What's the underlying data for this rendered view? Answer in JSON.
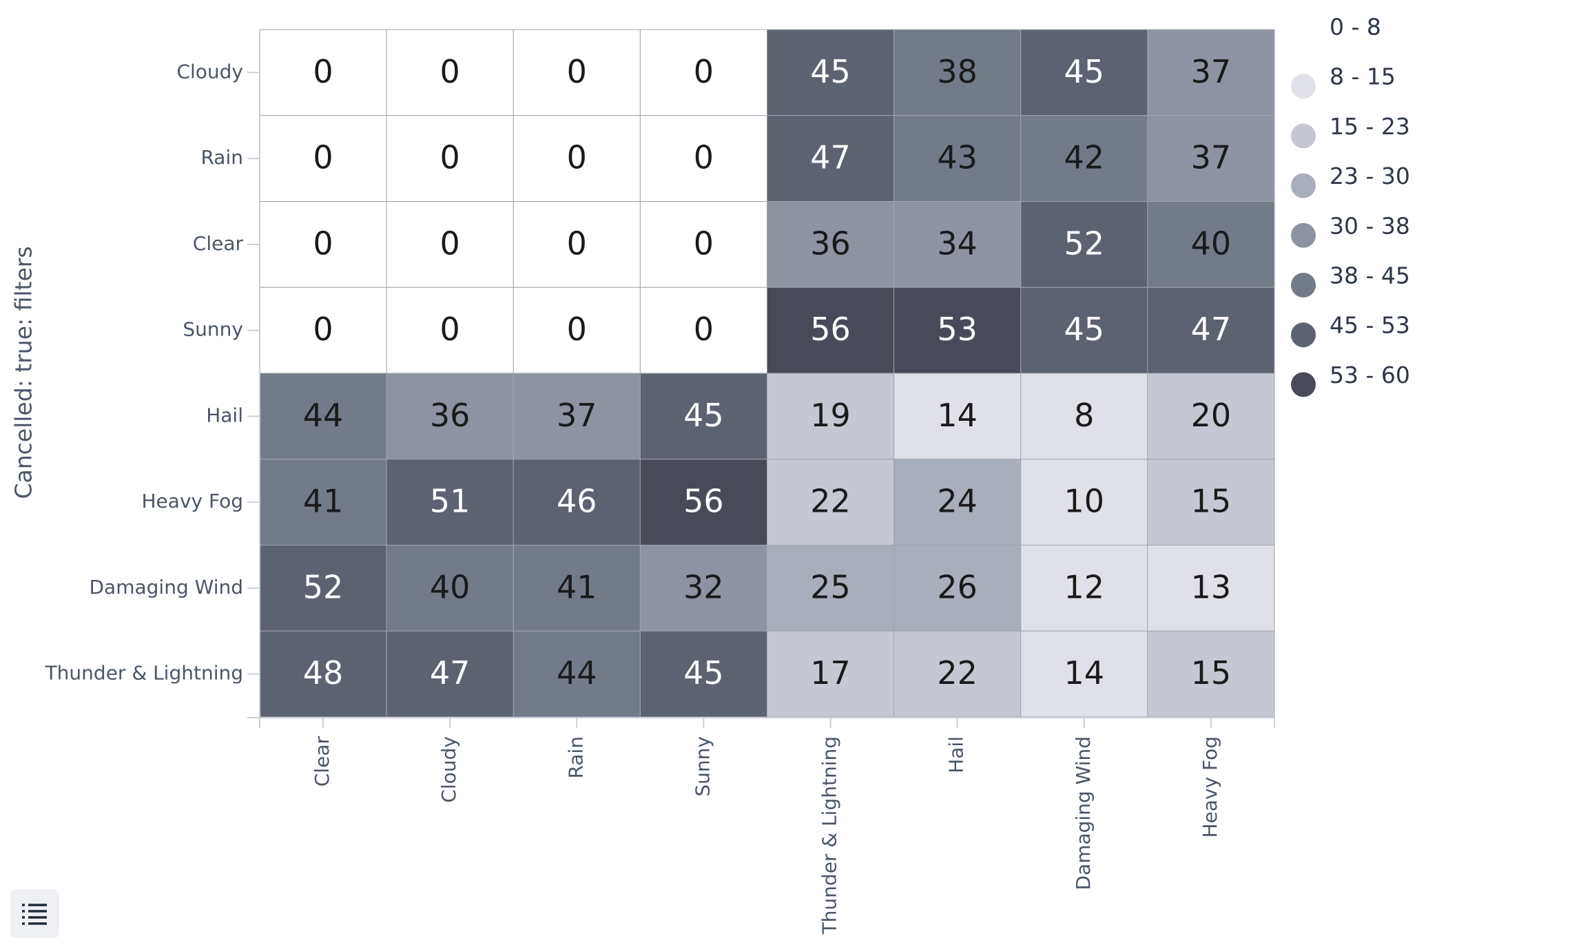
{
  "chart_data": {
    "type": "heatmap",
    "y_label": "Cancelled: true: filters",
    "rows": [
      "Cloudy",
      "Rain",
      "Clear",
      "Sunny",
      "Hail",
      "Heavy Fog",
      "Damaging Wind",
      "Thunder & Lightning"
    ],
    "columns": [
      "Clear",
      "Cloudy",
      "Rain",
      "Sunny",
      "Thunder & Lightning",
      "Hail",
      "Damaging Wind",
      "Heavy Fog"
    ],
    "values": [
      [
        0,
        0,
        0,
        0,
        45,
        38,
        45,
        37
      ],
      [
        0,
        0,
        0,
        0,
        47,
        43,
        42,
        37
      ],
      [
        0,
        0,
        0,
        0,
        36,
        34,
        52,
        40
      ],
      [
        0,
        0,
        0,
        0,
        56,
        53,
        45,
        47
      ],
      [
        44,
        36,
        37,
        45,
        19,
        14,
        8,
        20
      ],
      [
        41,
        51,
        46,
        56,
        22,
        24,
        10,
        15
      ],
      [
        52,
        40,
        41,
        32,
        25,
        26,
        12,
        13
      ],
      [
        48,
        47,
        44,
        45,
        17,
        22,
        14,
        15
      ]
    ],
    "bin_edges": [
      0,
      8,
      15,
      23,
      30,
      38,
      45,
      53,
      60
    ],
    "legend": [
      {
        "label": "0 - 8",
        "color": "#ffffff"
      },
      {
        "label": "8 - 15",
        "color": "#e0e1e8"
      },
      {
        "label": "15 - 23",
        "color": "#c5c8d2"
      },
      {
        "label": "23 - 30",
        "color": "#a9aebb"
      },
      {
        "label": "30 - 38",
        "color": "#8d93a1"
      },
      {
        "label": "38 - 45",
        "color": "#737b89"
      },
      {
        "label": "45 - 53",
        "color": "#5d6271"
      },
      {
        "label": "53 - 60",
        "color": "#484b57"
      }
    ]
  }
}
